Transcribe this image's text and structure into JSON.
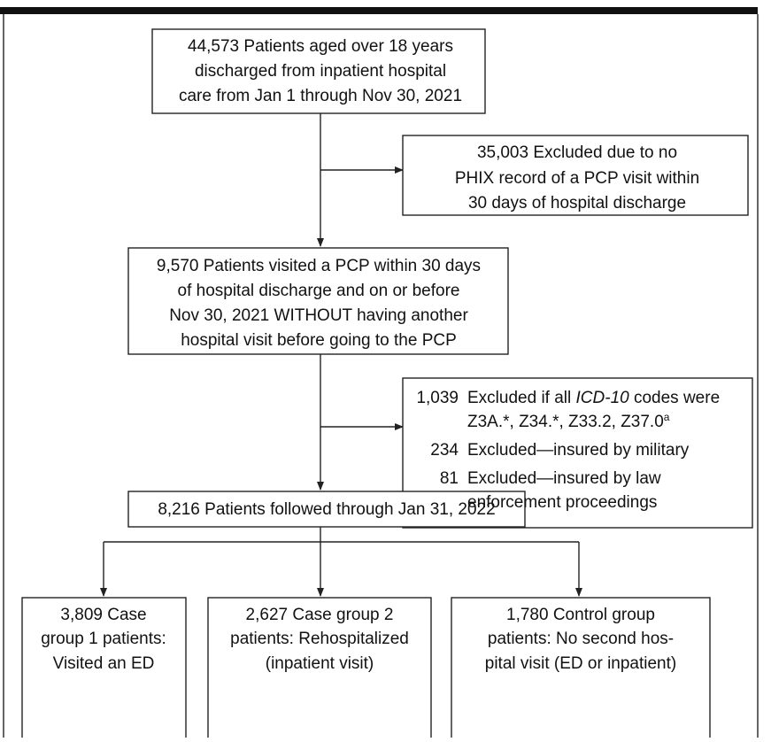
{
  "nodes": [
    {
      "lines": [
        "44,573 Patients aged over 18 years",
        "discharged from inpatient hospital",
        "care from Jan 1 through Nov 30, 2021"
      ]
    },
    {
      "lines": [
        "35,003 Excluded due to no",
        "PHIX record of a PCP visit within",
        "30 days of hospital discharge"
      ]
    },
    {
      "lines": [
        "9,570 Patients visited a PCP within 30 days",
        "of hospital discharge and on or before",
        "Nov 30, 2021 WITHOUT having another",
        "hospital visit before going to the PCP"
      ]
    },
    {
      "items": [
        {
          "count": "1,039",
          "parts": [
            "Excluded if all ",
            "ICD-10",
            " codes were"
          ],
          "line2": "Z3A.*, Z34.*, Z33.2, Z37.0",
          "footnote": "a"
        },
        {
          "count": "234",
          "lines": [
            "Excluded—insured by military"
          ]
        },
        {
          "count": "81",
          "lines": [
            "Excluded—insured by law",
            "enforcement proceedings"
          ]
        }
      ]
    },
    {
      "lines": [
        "8,216 Patients followed through Jan 31, 2022"
      ]
    },
    {
      "lines": [
        "3,809 Case",
        "group 1 patients:",
        "Visited an ED"
      ]
    },
    {
      "lines": [
        "2,627 Case group 2",
        "patients: Rehospitalized",
        "(inpatient visit)"
      ]
    },
    {
      "lines": [
        "1,780 Control group",
        "patients: No second hos-",
        "pital visit (ED or inpatient)"
      ]
    }
  ]
}
